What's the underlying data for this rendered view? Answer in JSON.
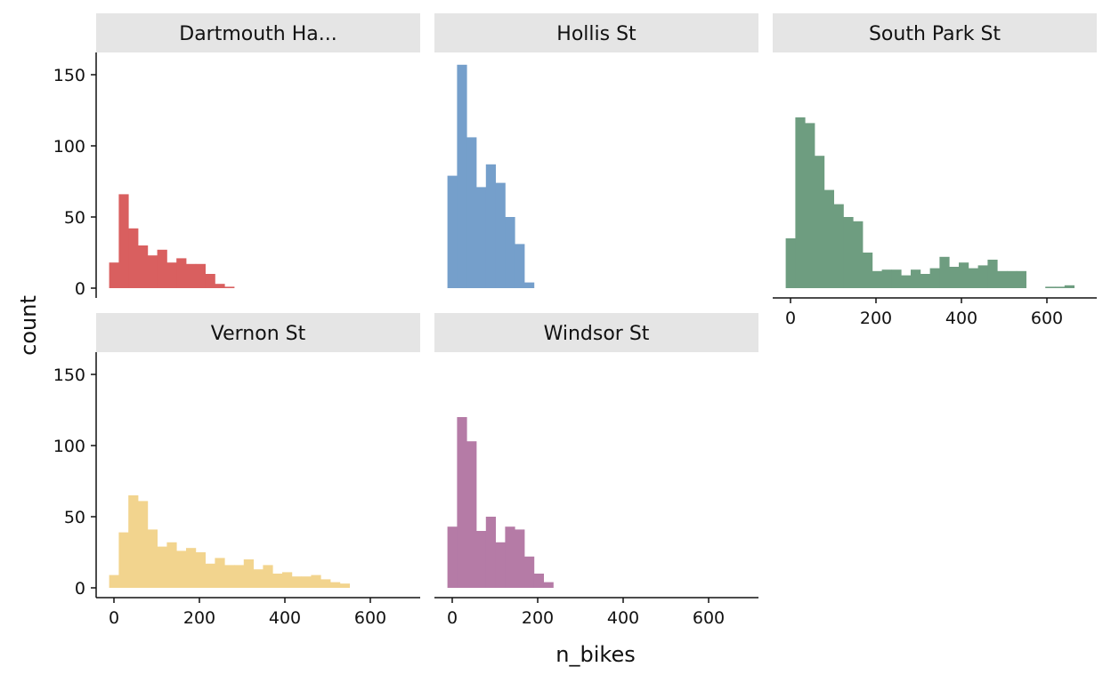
{
  "chart_data": {
    "type": "bar",
    "subtype": "faceted-histogram",
    "xlabel": "n_bikes",
    "ylabel": "count",
    "bin_width": 22.5,
    "xlim": [
      -15,
      700
    ],
    "ylim": [
      0,
      160
    ],
    "x_ticks": [
      0,
      200,
      400,
      600
    ],
    "y_ticks": [
      0,
      50,
      100,
      150
    ],
    "facets": [
      {
        "name": "Dartmouth Ha...",
        "color": "#D95F5F",
        "x_start": -11.25,
        "values": [
          18,
          66,
          42,
          30,
          23,
          27,
          18,
          21,
          17,
          17,
          10,
          3,
          1
        ]
      },
      {
        "name": "Hollis St",
        "color": "#759FCB",
        "x_start": -11.25,
        "values": [
          79,
          157,
          106,
          71,
          87,
          74,
          50,
          31,
          4
        ]
      },
      {
        "name": "South Park St",
        "color": "#6E9D80",
        "x_start": -11.25,
        "values": [
          35,
          120,
          116,
          93,
          69,
          59,
          50,
          47,
          25,
          12,
          13,
          13,
          9,
          13,
          10,
          14,
          22,
          15,
          18,
          14,
          16,
          20,
          12,
          12,
          12,
          0,
          0,
          1,
          1,
          2
        ]
      },
      {
        "name": "Vernon St",
        "color": "#F2D48E",
        "x_start": -11.25,
        "values": [
          9,
          39,
          65,
          61,
          41,
          29,
          32,
          26,
          28,
          25,
          17,
          21,
          16,
          16,
          20,
          13,
          16,
          10,
          11,
          8,
          8,
          9,
          6,
          4,
          3
        ]
      },
      {
        "name": "Windsor St",
        "color": "#B57BA6",
        "x_start": -11.25,
        "values": [
          43,
          120,
          103,
          40,
          50,
          32,
          43,
          41,
          22,
          10,
          4
        ]
      }
    ]
  }
}
